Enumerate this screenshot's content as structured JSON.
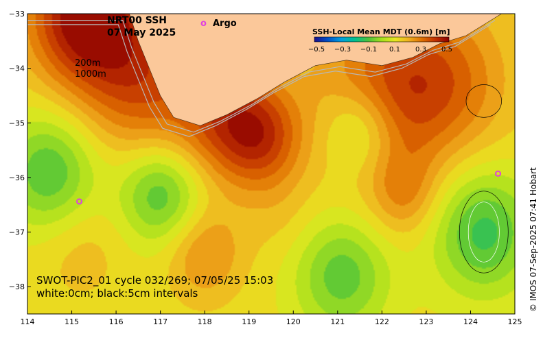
{
  "map": {
    "title_line1": "NRT00 SSH",
    "title_line2": "07 May 2025",
    "legend_marker_symbol": "o",
    "legend_marker_label": "Argo",
    "isobath_200": "200m",
    "isobath_1000": "1000m",
    "footer_line1": "SWOT-PIC2_01 cycle 032/269; 07/05/25 15:03",
    "footer_line2": "white:0cm; black:5cm intervals",
    "credit": "© IMOS 07-Sep-2025 07:41 Hobart",
    "colors": {
      "land": "#fbc89a",
      "argo": "#e040e0",
      "isobath": "#b8b8b8"
    }
  },
  "colorbar": {
    "title": "SSH-Local Mean MDT (0.6m) [m]",
    "tick_labels": [
      "−0.5",
      "−0.3",
      "−0.1",
      "0.1",
      "0.3",
      "0.5"
    ],
    "range": [
      -0.5,
      0.5
    ],
    "stops": [
      "#1a0f8c",
      "#0050c8",
      "#00a0e0",
      "#00c090",
      "#4cc23c",
      "#a6e01e",
      "#e8e820",
      "#f0b020",
      "#e07000",
      "#c03000",
      "#8c0000"
    ]
  },
  "axes": {
    "x_ticks": [
      "114",
      "115",
      "116",
      "117",
      "118",
      "119",
      "120",
      "121",
      "122",
      "123",
      "124",
      "125"
    ],
    "y_ticks": [
      "−33",
      "−34",
      "−35",
      "−36",
      "−37",
      "−38"
    ],
    "x_range": [
      114,
      125
    ],
    "y_range": [
      -38.5,
      -33
    ]
  },
  "field": {
    "background_value": 0.12,
    "features": [
      {
        "lon": 115.3,
        "lat": -33.0,
        "amp": 0.38,
        "r": 0.9
      },
      {
        "lon": 116.6,
        "lat": -34.2,
        "amp": 0.22,
        "r": 1.0
      },
      {
        "lon": 118.5,
        "lat": -34.9,
        "amp": 0.22,
        "r": 0.8
      },
      {
        "lon": 119.3,
        "lat": -35.3,
        "amp": 0.2,
        "r": 0.65
      },
      {
        "lon": 122.0,
        "lat": -34.5,
        "amp": 0.22,
        "r": 1.1
      },
      {
        "lon": 123.5,
        "lat": -34.2,
        "amp": 0.16,
        "r": 1.0
      },
      {
        "lon": 114.5,
        "lat": -35.9,
        "amp": -0.22,
        "r": 0.75
      },
      {
        "lon": 117.0,
        "lat": -36.3,
        "amp": -0.22,
        "r": 0.65
      },
      {
        "lon": 121.5,
        "lat": -35.1,
        "amp": -0.18,
        "r": 0.6
      },
      {
        "lon": 121.1,
        "lat": -37.8,
        "amp": -0.2,
        "r": 0.75
      },
      {
        "lon": 124.3,
        "lat": -37.0,
        "amp": -0.24,
        "r": 0.8
      },
      {
        "lon": 118.0,
        "lat": -37.4,
        "amp": 0.14,
        "r": 0.6
      },
      {
        "lon": 122.5,
        "lat": -36.3,
        "amp": 0.12,
        "r": 0.55
      },
      {
        "lon": 115.2,
        "lat": -37.3,
        "amp": 0.06,
        "r": 0.7
      },
      {
        "lon": 119.7,
        "lat": -36.7,
        "amp": 0.04,
        "r": 0.6
      }
    ]
  },
  "coastline": [
    [
      114.0,
      -33.0
    ],
    [
      116.3,
      -33.0
    ],
    [
      116.5,
      -33.5
    ],
    [
      116.7,
      -33.9
    ],
    [
      117.0,
      -34.5
    ],
    [
      117.3,
      -34.9
    ],
    [
      117.9,
      -35.05
    ],
    [
      118.5,
      -34.85
    ],
    [
      119.2,
      -34.55
    ],
    [
      119.8,
      -34.25
    ],
    [
      120.5,
      -33.95
    ],
    [
      121.2,
      -33.85
    ],
    [
      122.0,
      -33.95
    ],
    [
      122.7,
      -33.8
    ],
    [
      123.3,
      -33.55
    ],
    [
      123.9,
      -33.4
    ],
    [
      124.5,
      -33.1
    ],
    [
      124.7,
      -33.0
    ]
  ],
  "argo_floats": [
    {
      "lon": 115.17,
      "lat": -36.44
    },
    {
      "lon": 124.62,
      "lat": -35.93
    }
  ]
}
